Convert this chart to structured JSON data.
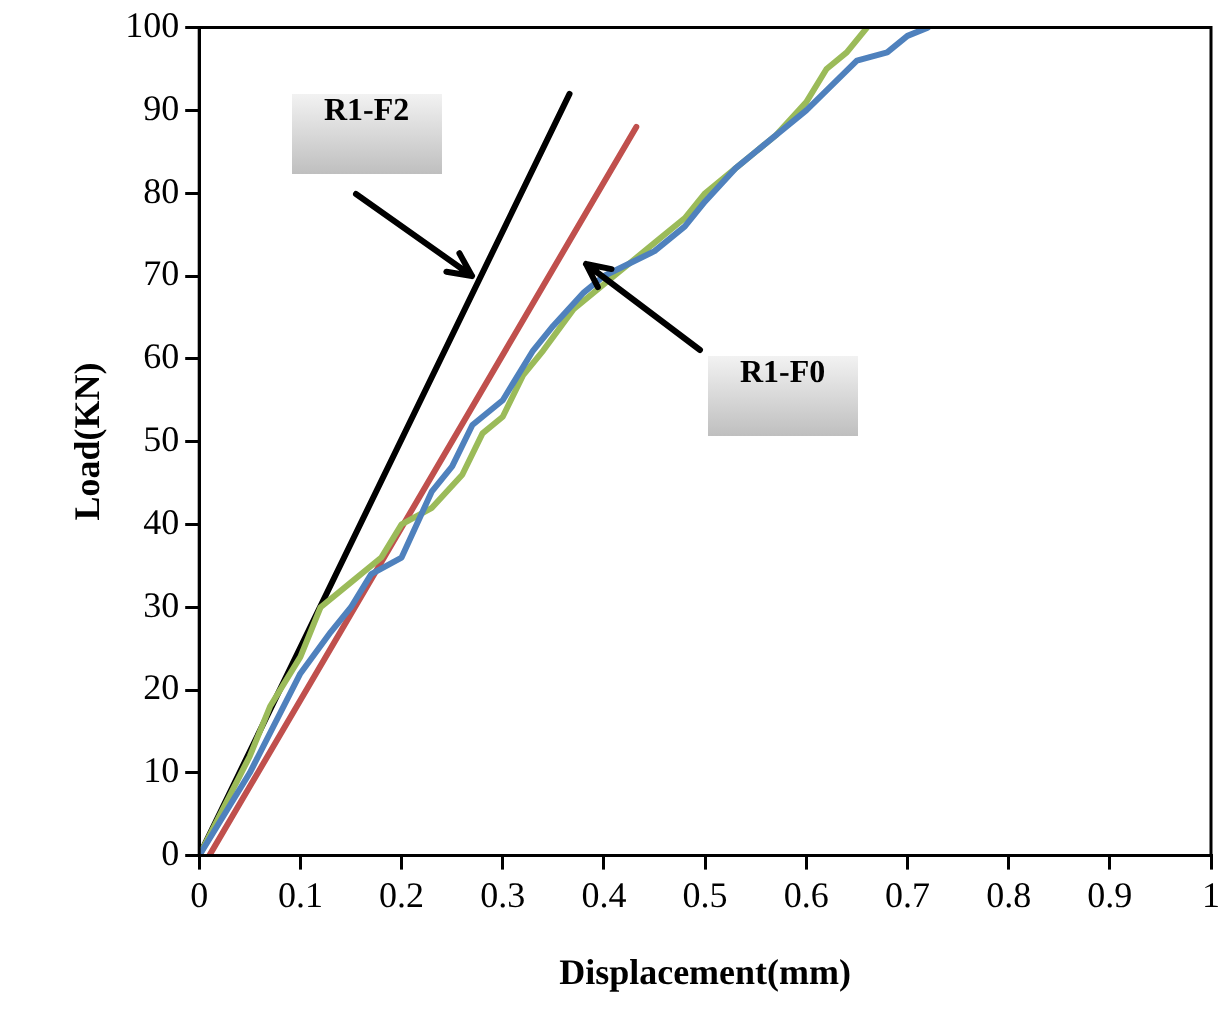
{
  "chart_data": {
    "type": "line",
    "xlabel": "Displacement(mm)",
    "ylabel": "Load(KN)",
    "xlim": [
      0,
      1
    ],
    "xticks": [
      0,
      0.1,
      0.2,
      0.3,
      0.4,
      0.5,
      0.6,
      0.7,
      0.8,
      0.9,
      1
    ],
    "ylim": [
      0,
      100
    ],
    "yticks": [
      0,
      10,
      20,
      30,
      40,
      50,
      60,
      70,
      80,
      90,
      100
    ],
    "grid": false,
    "legend": false,
    "marker": "none",
    "line_style": "solid",
    "series": [
      {
        "color": "#4f81bd",
        "x": [
          0,
          0.05,
          0.1,
          0.13,
          0.15,
          0.17,
          0.2,
          0.23,
          0.25,
          0.27,
          0.3,
          0.31,
          0.33,
          0.35,
          0.38,
          0.4,
          0.45,
          0.48,
          0.5,
          0.53,
          0.55,
          0.6,
          0.65,
          0.68,
          0.7,
          0.72
        ],
        "values": [
          0,
          10,
          22,
          27,
          30,
          34,
          36,
          44,
          47,
          52,
          55,
          57,
          61,
          64,
          68,
          70,
          73,
          76,
          79,
          83,
          85,
          90,
          96,
          97,
          99,
          100
        ]
      },
      {
        "color": "#9bbb59",
        "x": [
          0,
          0.05,
          0.07,
          0.1,
          0.12,
          0.15,
          0.18,
          0.2,
          0.23,
          0.26,
          0.28,
          0.3,
          0.32,
          0.34,
          0.37,
          0.4,
          0.42,
          0.45,
          0.48,
          0.5,
          0.53,
          0.55,
          0.57,
          0.6,
          0.62,
          0.64,
          0.66
        ],
        "values": [
          0,
          12,
          18,
          24,
          30,
          33,
          36,
          40,
          42,
          46,
          51,
          53,
          58,
          61,
          66,
          69,
          71,
          74,
          77,
          80,
          83,
          85,
          87,
          91,
          95,
          97,
          100
        ]
      },
      {
        "color": "#000000",
        "x": [
          0,
          0.366
        ],
        "values": [
          0,
          92
        ]
      },
      {
        "color": "#c0504d",
        "x": [
          0.01,
          0.432
        ],
        "values": [
          0,
          88
        ]
      }
    ],
    "annotations": [
      "R1-F2",
      "R1-F0"
    ]
  }
}
